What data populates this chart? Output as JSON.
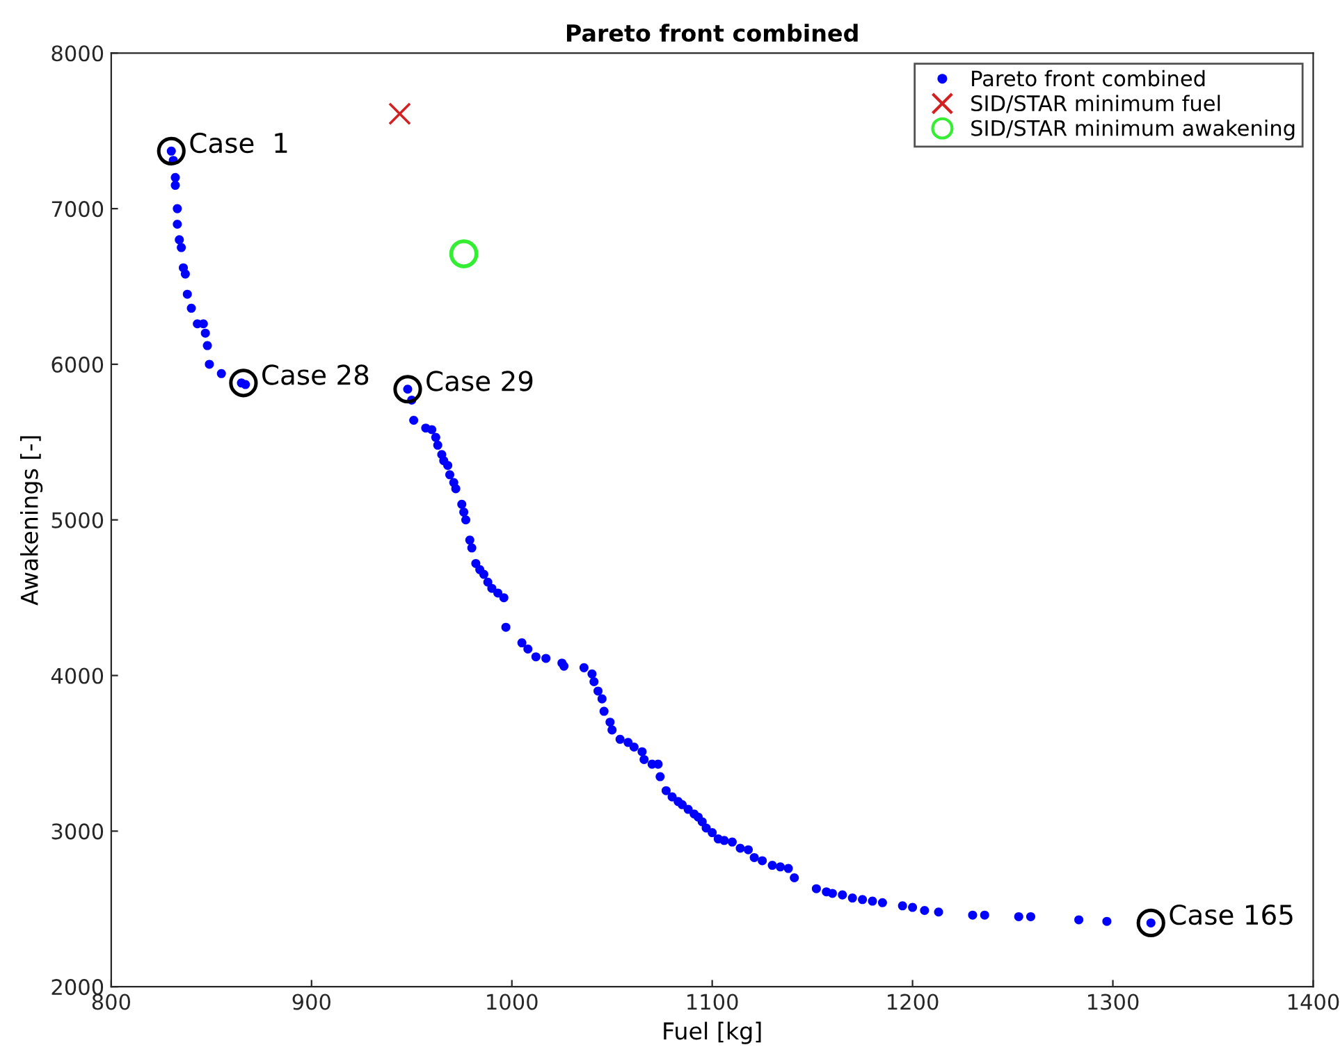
{
  "chart_data": {
    "type": "scatter",
    "title": "Pareto front combined",
    "xlabel": "Fuel [kg]",
    "ylabel": "Awakenings [-]",
    "xlim": [
      800,
      1400
    ],
    "xticks": [
      800,
      900,
      1000,
      1100,
      1200,
      1300,
      1400
    ],
    "ylim": [
      2000,
      8000
    ],
    "yticks": [
      2000,
      3000,
      4000,
      5000,
      6000,
      7000,
      8000
    ],
    "grid": false,
    "legend": "top right",
    "series": [
      {
        "name": "Pareto front combined",
        "color": "#0000ff",
        "marker": "circle",
        "x": [
          830,
          831,
          832,
          832,
          833,
          833,
          834,
          835,
          836,
          837,
          838,
          840,
          843,
          846,
          847,
          848,
          849,
          855,
          865,
          867,
          948,
          950,
          951,
          957,
          960,
          962,
          963,
          965,
          966,
          968,
          969,
          971,
          972,
          975,
          976,
          977,
          979,
          980,
          982,
          984,
          986,
          988,
          990,
          993,
          996,
          997,
          1005,
          1008,
          1012,
          1017,
          1025,
          1026,
          1036,
          1040,
          1041,
          1043,
          1045,
          1046,
          1049,
          1050,
          1054,
          1058,
          1061,
          1065,
          1066,
          1070,
          1073,
          1074,
          1077,
          1080,
          1083,
          1085,
          1088,
          1091,
          1093,
          1095,
          1097,
          1100,
          1103,
          1106,
          1110,
          1114,
          1118,
          1121,
          1125,
          1130,
          1134,
          1138,
          1141,
          1152,
          1157,
          1160,
          1165,
          1170,
          1175,
          1180,
          1185,
          1195,
          1200,
          1206,
          1213,
          1230,
          1236,
          1253,
          1259,
          1283,
          1297,
          1319
        ],
        "values": [
          7370,
          7310,
          7200,
          7150,
          7000,
          6900,
          6800,
          6750,
          6620,
          6580,
          6450,
          6360,
          6260,
          6260,
          6200,
          6120,
          6000,
          5940,
          5880,
          5870,
          5840,
          5770,
          5640,
          5590,
          5580,
          5530,
          5480,
          5420,
          5380,
          5350,
          5290,
          5240,
          5200,
          5100,
          5050,
          5000,
          4870,
          4820,
          4720,
          4680,
          4650,
          4600,
          4560,
          4530,
          4500,
          4310,
          4210,
          4170,
          4120,
          4110,
          4080,
          4060,
          4050,
          4010,
          3960,
          3900,
          3850,
          3770,
          3700,
          3650,
          3590,
          3570,
          3540,
          3510,
          3460,
          3430,
          3430,
          3350,
          3260,
          3220,
          3190,
          3170,
          3140,
          3110,
          3090,
          3060,
          3020,
          2990,
          2950,
          2940,
          2930,
          2890,
          2880,
          2830,
          2810,
          2780,
          2770,
          2760,
          2700,
          2630,
          2610,
          2600,
          2590,
          2570,
          2560,
          2550,
          2540,
          2520,
          2510,
          2490,
          2480,
          2460,
          2460,
          2450,
          2450,
          2430,
          2420,
          2410
        ]
      },
      {
        "name": "SID/STAR minimum fuel",
        "color": "#d42020",
        "marker": "cross",
        "x": [
          944
        ],
        "values": [
          7610
        ]
      },
      {
        "name": "SID/STAR minimum awakening",
        "color": "#33ee33",
        "marker": "circle",
        "x": [
          976
        ],
        "values": [
          6710
        ]
      }
    ],
    "annotations": [
      {
        "text": "Case  1",
        "x": 830,
        "y": 7370
      },
      {
        "text": "Case 28",
        "x": 866,
        "y": 5880
      },
      {
        "text": "Case 29",
        "x": 948,
        "y": 5840
      },
      {
        "text": "Case 165",
        "x": 1319,
        "y": 2410
      }
    ]
  }
}
